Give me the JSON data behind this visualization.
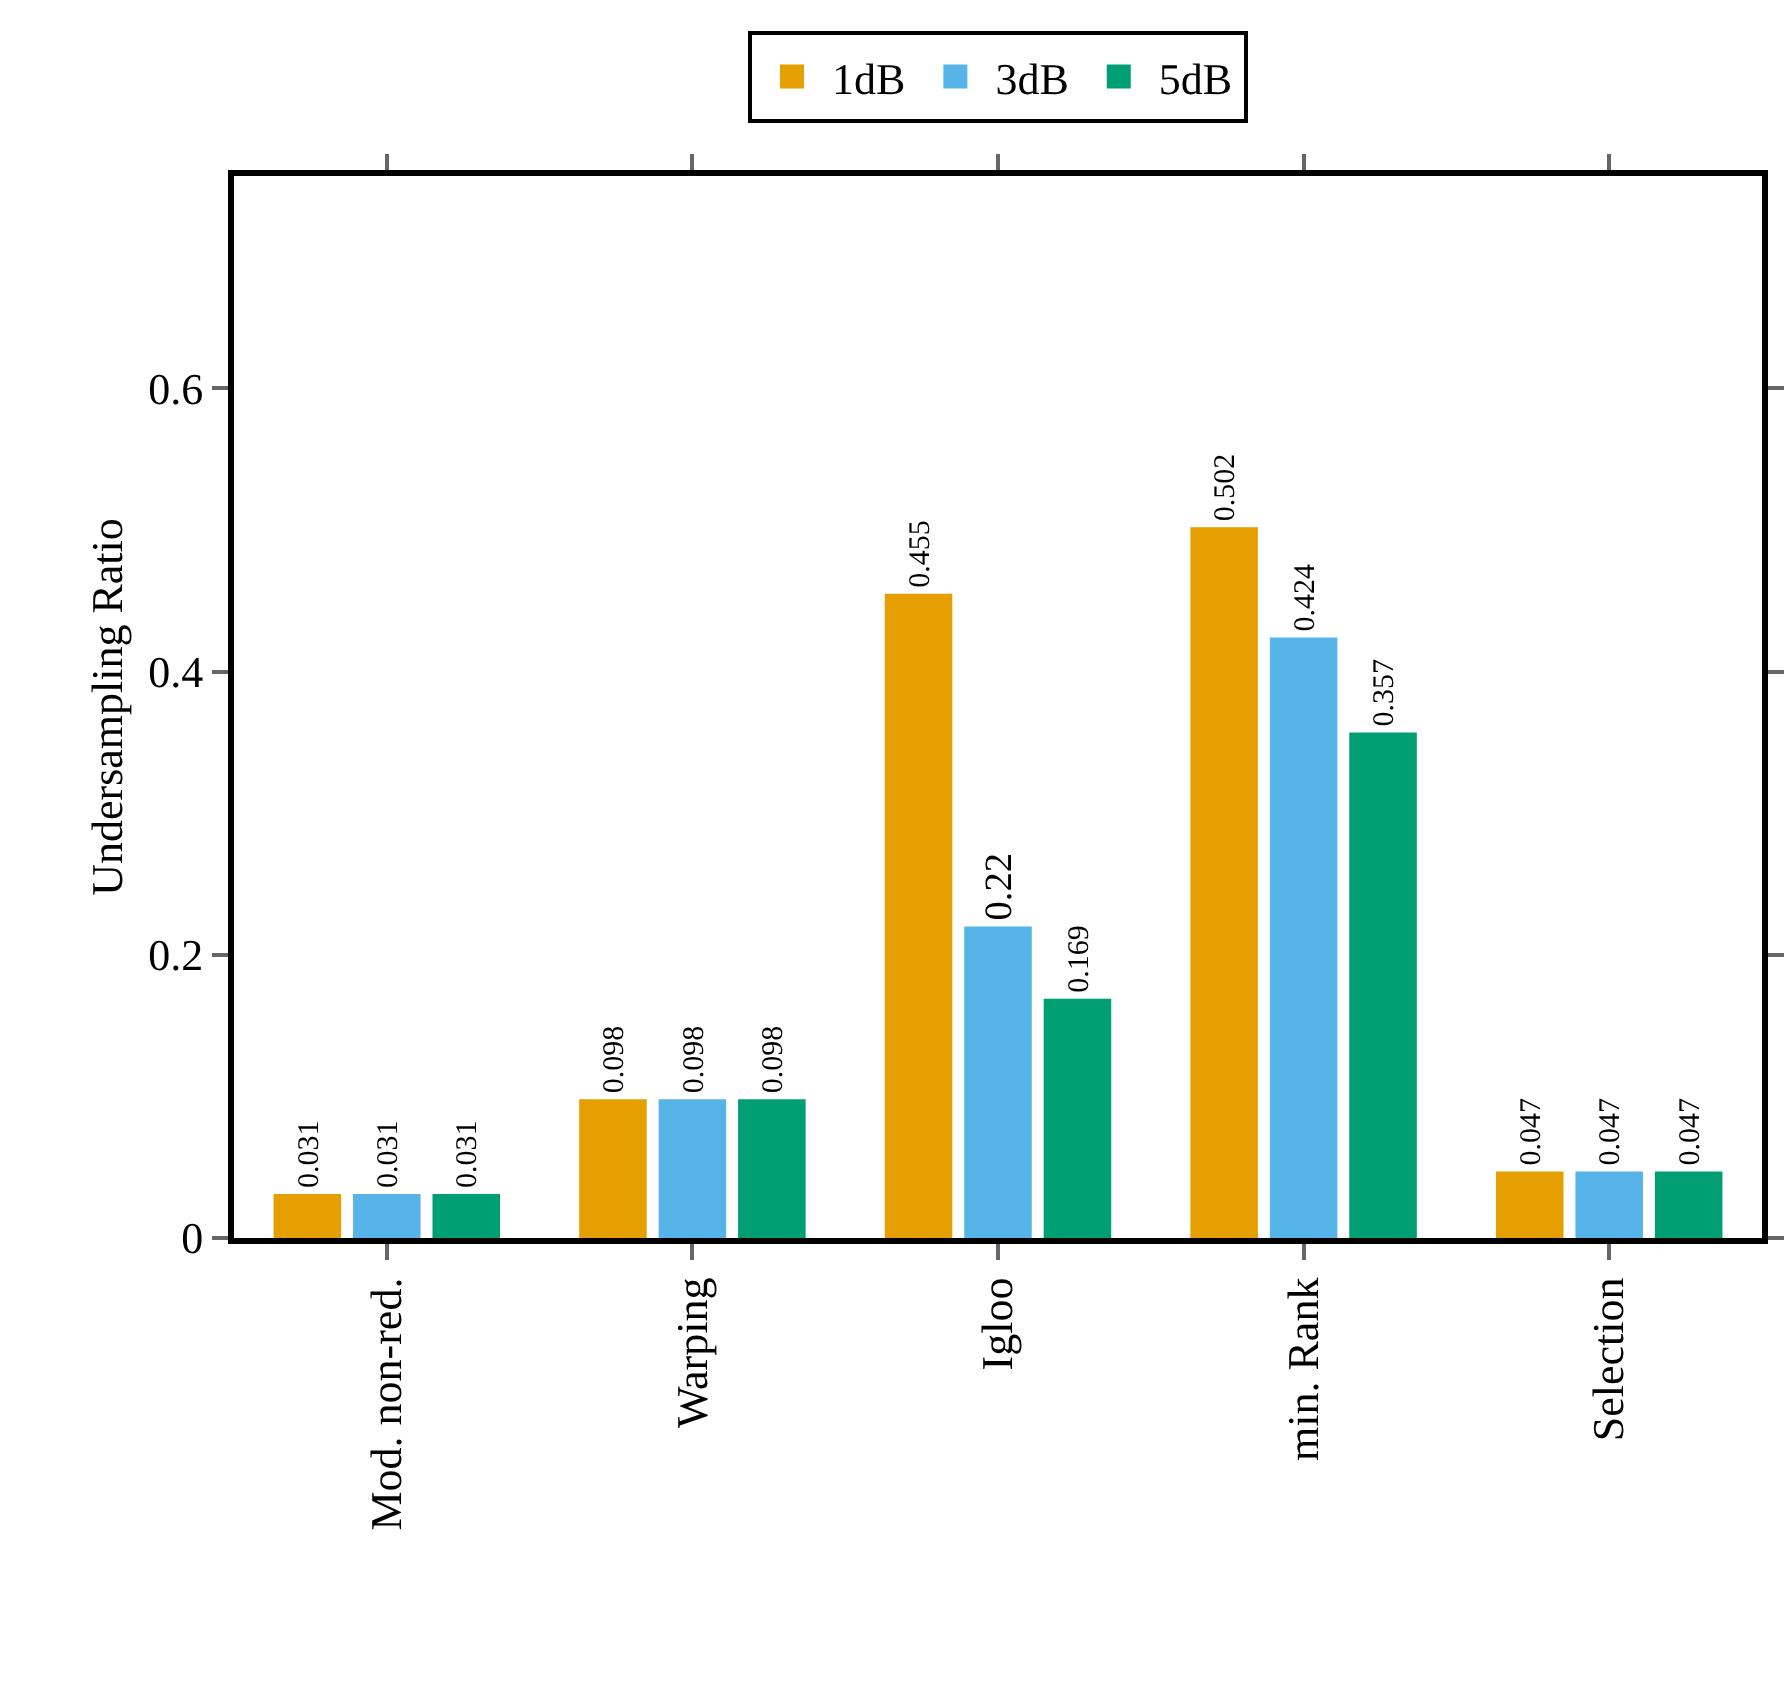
{
  "chart_data": {
    "type": "bar",
    "ylabel": "Undersampling Ratio",
    "categories": [
      "Mod. non-red.",
      "Warping",
      "Igloo",
      "min. Rank",
      "Selection"
    ],
    "series": [
      {
        "name": "1dB",
        "color": "#e69f00",
        "values": [
          0.031,
          0.098,
          0.455,
          0.502,
          0.047
        ]
      },
      {
        "name": "3dB",
        "color": "#56b4e9",
        "values": [
          0.031,
          0.098,
          0.22,
          0.424,
          0.047
        ]
      },
      {
        "name": "5dB",
        "color": "#009e73",
        "values": [
          0.031,
          0.098,
          0.169,
          0.357,
          0.047
        ]
      }
    ],
    "ylim": [
      0,
      0.75
    ],
    "yticks": [
      0,
      0.2,
      0.4,
      0.6
    ],
    "data_labels": true,
    "grid": false,
    "legend": "top"
  }
}
